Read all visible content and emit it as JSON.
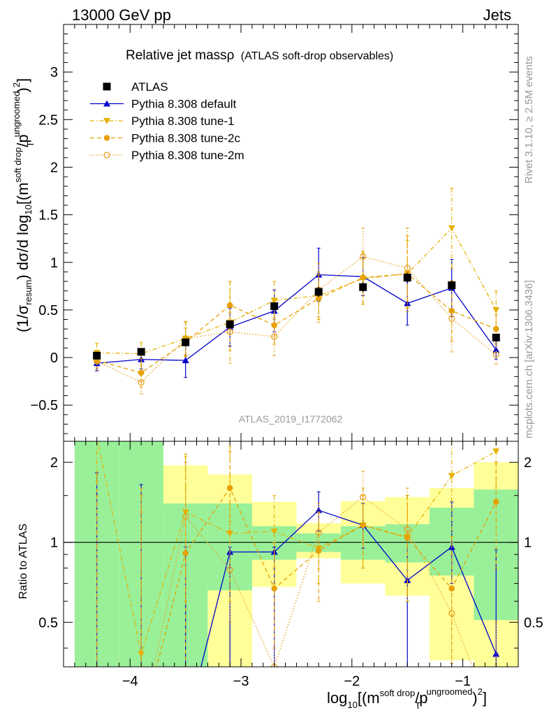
{
  "header": {
    "left": "13000 GeV pp",
    "right": "Jets"
  },
  "side_text": {
    "top": "Rivet 3.1.10, ≥ 2.5M events",
    "bottom": "mcplots.cern.ch [arXiv:1306.3436]"
  },
  "watermark": "ATLAS_2019_I1772062",
  "title": {
    "main": "Relative jet massρ",
    "sub": "(ATLAS soft-drop observables)"
  },
  "axes": {
    "ylabel_top": {
      "a": "(1/σ",
      "b": "resum",
      "c": ") dσ/d log",
      "d": "10",
      "e": "[(m",
      "f": "soft drop",
      "g": "/p",
      "h": "ungroomed",
      "i": "T",
      "j": ")",
      "k": "2",
      "l": "]"
    },
    "ylabel_bottom": "Ratio to ATLAS",
    "xlabel": {
      "a": "log",
      "b": "10",
      "c": "[(m",
      "d": "soft drop",
      "e": "/p",
      "f": "ungroomed",
      "g": "T",
      "h": ")",
      "i": "2",
      "j": "]"
    },
    "x_ticks": [
      "−4",
      "−3",
      "−2",
      "−1"
    ],
    "y_ticks_top": [
      "−0.5",
      "0",
      "0.5",
      "1",
      "1.5",
      "2",
      "2.5",
      "3"
    ],
    "y_ticks_bottom": [
      "0.5",
      "1",
      "2"
    ]
  },
  "legend": [
    {
      "label": "ATLAS"
    },
    {
      "label": "Pythia 8.308 default"
    },
    {
      "label": "Pythia 8.308 tune-1"
    },
    {
      "label": "Pythia 8.308 tune-2c"
    },
    {
      "label": "Pythia 8.308 tune-2m"
    }
  ],
  "colors": {
    "data": "#000000",
    "default": "#0000cc",
    "tune1": "#e6b200",
    "tune2c": "#e6a000",
    "tune2m": "#e6a020",
    "band_inner": "#99f099",
    "band_outer": "#ffff99"
  },
  "chart_data": {
    "type": "scatter",
    "xlim": [
      -4.6,
      -0.5
    ],
    "ylim": [
      -0.88,
      3.5
    ],
    "ratio_ylim_log": [
      0.34,
      2.4
    ],
    "x": [
      -4.3,
      -3.9,
      -3.5,
      -3.1,
      -2.7,
      -2.3,
      -1.9,
      -1.5,
      -1.1,
      -0.7
    ],
    "bin_edges": [
      -4.5,
      -4.1,
      -3.7,
      -3.3,
      -2.9,
      -2.5,
      -2.1,
      -1.7,
      -1.3,
      -0.9,
      -0.5
    ],
    "data": {
      "name": "ATLAS",
      "values": [
        0.02,
        0.06,
        0.16,
        0.35,
        0.54,
        0.69,
        0.74,
        0.84,
        0.76,
        0.21
      ],
      "err": [
        0.03,
        0.03,
        0.04,
        0.04,
        0.04,
        0.05,
        0.05,
        0.05,
        0.05,
        0.03
      ],
      "ratio_band_inner": [
        [
          0.3,
          2.4
        ],
        [
          0.3,
          2.4
        ],
        [
          0.3,
          1.4
        ],
        [
          0.66,
          1.4
        ],
        [
          0.86,
          1.15
        ],
        [
          0.92,
          1.08
        ],
        [
          0.86,
          1.15
        ],
        [
          0.84,
          1.17
        ],
        [
          0.75,
          1.35
        ],
        [
          0.51,
          1.58
        ]
      ],
      "ratio_band_outer": [
        [
          0.3,
          2.4
        ],
        [
          0.3,
          2.4
        ],
        [
          0.38,
          1.95
        ],
        [
          0.3,
          1.8
        ],
        [
          0.68,
          1.42
        ],
        [
          0.87,
          1.18
        ],
        [
          0.7,
          1.43
        ],
        [
          0.63,
          1.48
        ],
        [
          0.36,
          1.6
        ],
        [
          0.3,
          2.0
        ]
      ]
    },
    "series": [
      {
        "name": "Pythia 8.308 default",
        "marker": "triangle-up",
        "dash": "",
        "values": [
          -0.06,
          -0.02,
          -0.03,
          0.32,
          0.49,
          0.87,
          0.85,
          0.57,
          0.73,
          0.08
        ],
        "err": [
          0.08,
          0.1,
          0.18,
          0.2,
          0.22,
          0.28,
          0.2,
          0.23,
          0.3,
          0.1
        ],
        "ratio": [
          0.2,
          0.2,
          0.2,
          0.92,
          0.92,
          1.32,
          1.16,
          0.72,
          0.96,
          0.38
        ],
        "ratio_err": [
          [
            0.2,
            1.83
          ],
          [
            0.2,
            1.65
          ],
          [
            0.2,
            0.96
          ],
          [
            0.2,
            0.96
          ],
          [
            0.2,
            0.96
          ],
          [
            1.1,
            1.55
          ],
          [
            0.95,
            1.4
          ],
          [
            0.3,
            1.02
          ],
          [
            0.7,
            1.42
          ],
          [
            0.2,
            0.94
          ]
        ]
      },
      {
        "name": "Pythia 8.308 tune-1",
        "marker": "triangle-down",
        "dash": "6,3,1.5,3",
        "values": [
          0.05,
          0.04,
          0.2,
          0.37,
          0.6,
          0.65,
          0.83,
          0.88,
          1.36,
          0.5
        ],
        "err": [
          0.1,
          0.12,
          0.18,
          0.43,
          0.2,
          0.25,
          0.27,
          0.35,
          0.42,
          0.2
        ],
        "ratio": [
          2.5,
          0.38,
          1.3,
          1.08,
          1.1,
          0.95,
          1.16,
          1.05,
          1.78,
          2.2
        ],
        "ratio_err": [
          [
            1.7,
            2.5
          ],
          [
            0.2,
            1.6
          ],
          [
            0.6,
            2.1
          ],
          [
            0.6,
            2.3
          ],
          [
            0.8,
            1.5
          ],
          [
            0.7,
            1.3
          ],
          [
            0.8,
            1.5
          ],
          [
            0.6,
            1.5
          ],
          [
            1.0,
            2.4
          ],
          [
            1.6,
            2.4
          ]
        ]
      },
      {
        "name": "Pythia 8.308 tune-2c",
        "marker": "circle",
        "dash": "6,4",
        "values": [
          -0.03,
          -0.16,
          0.16,
          0.55,
          0.34,
          0.62,
          0.84,
          0.88,
          0.49,
          0.3
        ],
        "err": [
          0.08,
          0.15,
          0.15,
          0.25,
          0.2,
          0.25,
          0.28,
          0.4,
          0.32,
          0.15
        ],
        "ratio": [
          0.2,
          0.2,
          0.91,
          1.6,
          0.67,
          0.93,
          1.16,
          1.04,
          0.67,
          1.42
        ],
        "ratio_err": [
          [
            0.2,
            1.8
          ],
          [
            0.2,
            1.5
          ],
          [
            0.3,
            2.15
          ],
          [
            1.1,
            2.2
          ],
          [
            0.4,
            1.0
          ],
          [
            0.6,
            1.3
          ],
          [
            0.8,
            1.6
          ],
          [
            0.6,
            1.5
          ],
          [
            0.35,
            1.05
          ],
          [
            0.8,
            2.0
          ]
        ]
      },
      {
        "name": "Pythia 8.308 tune-2m",
        "marker": "open-circle",
        "dash": "1.5,2.5",
        "values": [
          -0.04,
          -0.26,
          0.2,
          0.27,
          0.22,
          0.71,
          1.06,
          0.94,
          0.41,
          0.03
        ],
        "err": [
          0.09,
          0.12,
          0.17,
          0.2,
          0.2,
          0.28,
          0.3,
          0.42,
          0.35,
          0.1
        ],
        "ratio": [
          0.2,
          0.2,
          1.25,
          0.79,
          0.34,
          1.09,
          1.48,
          1.12,
          0.54,
          0.2
        ],
        "ratio_err": [
          [
            0.2,
            1.5
          ],
          [
            0.2,
            1.3
          ],
          [
            0.6,
            2.0
          ],
          [
            0.5,
            1.2
          ],
          [
            0.2,
            0.7
          ],
          [
            0.8,
            1.4
          ],
          [
            1.0,
            1.85
          ],
          [
            0.7,
            1.6
          ],
          [
            0.3,
            0.9
          ],
          [
            0.2,
            0.5
          ]
        ]
      }
    ]
  }
}
